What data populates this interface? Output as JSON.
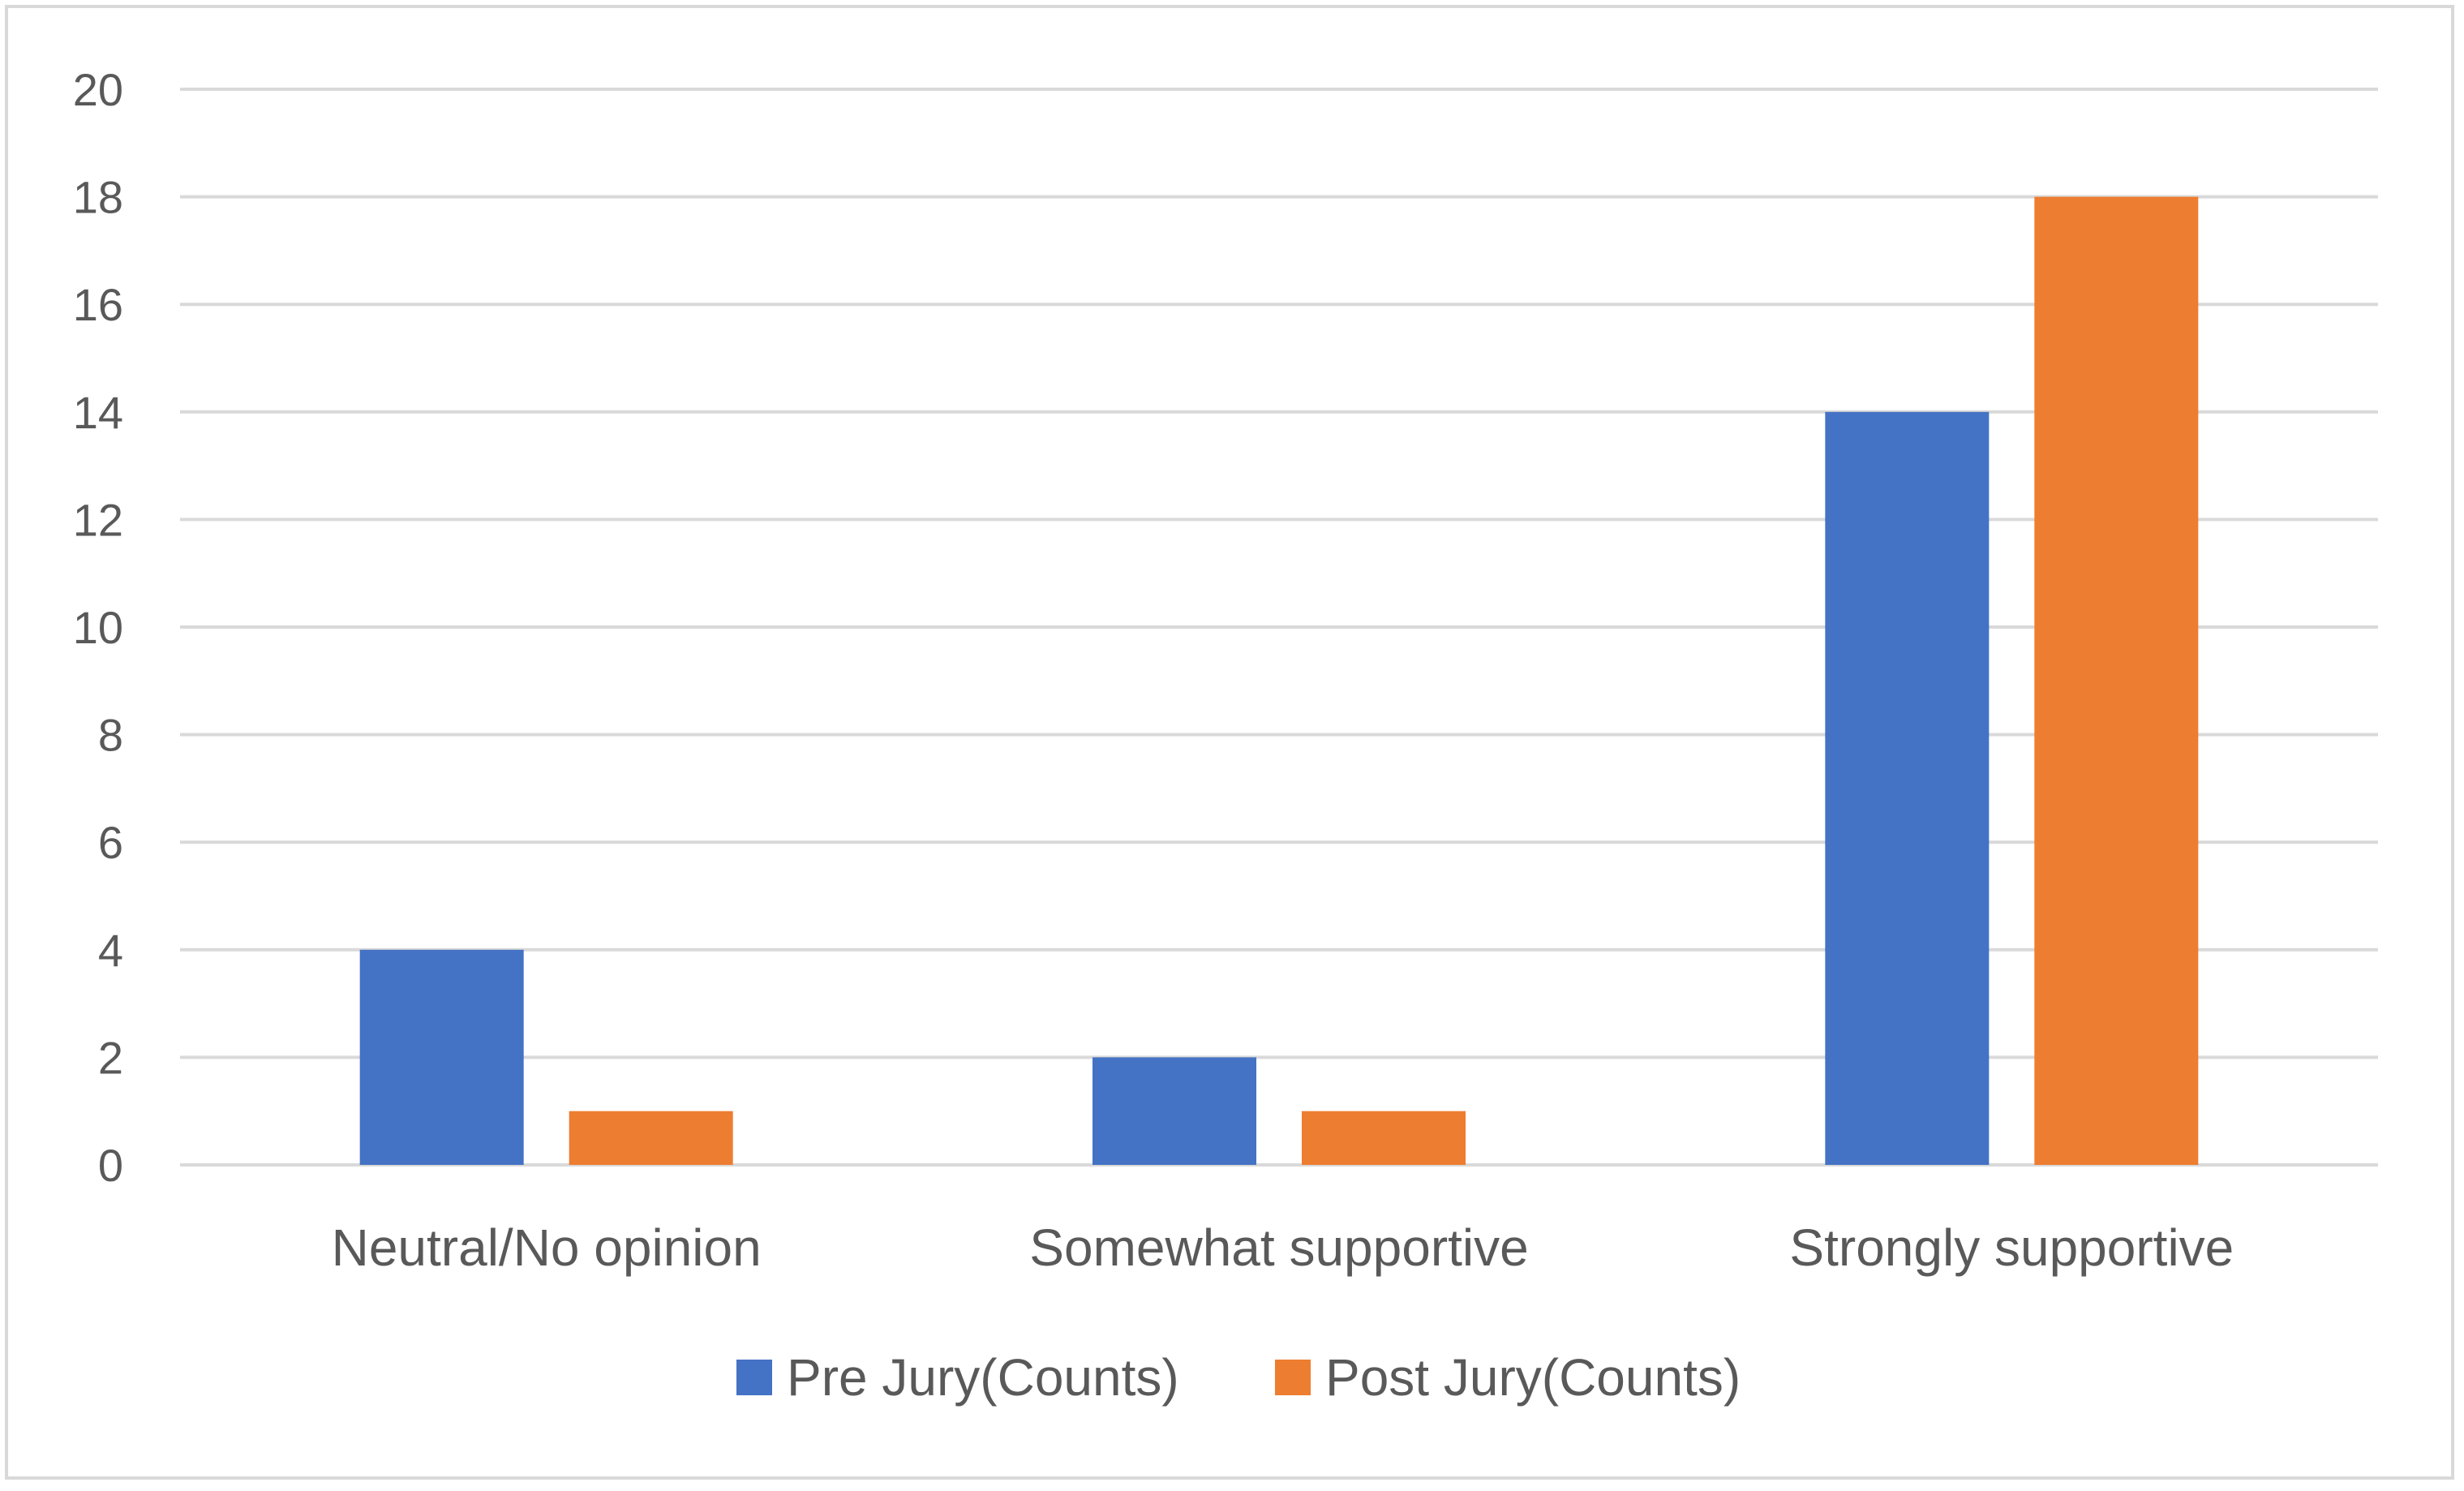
{
  "chart_data": {
    "type": "bar",
    "categories": [
      "Neutral/No opinion",
      "Somewhat supportive",
      "Strongly supportive"
    ],
    "series": [
      {
        "name": "Pre Jury(Counts)",
        "color": "#4472c4",
        "values": [
          4,
          2,
          14
        ]
      },
      {
        "name": "Post Jury(Counts)",
        "color": "#ed7d31",
        "values": [
          1,
          1,
          18
        ]
      }
    ],
    "yticks": [
      0,
      2,
      4,
      6,
      8,
      10,
      12,
      14,
      16,
      18,
      20
    ],
    "ylim": [
      0,
      20
    ],
    "grid": true,
    "gridColor": "#d9d9d9",
    "legend": "bottom",
    "title": "",
    "xlabel": "",
    "ylabel": ""
  }
}
